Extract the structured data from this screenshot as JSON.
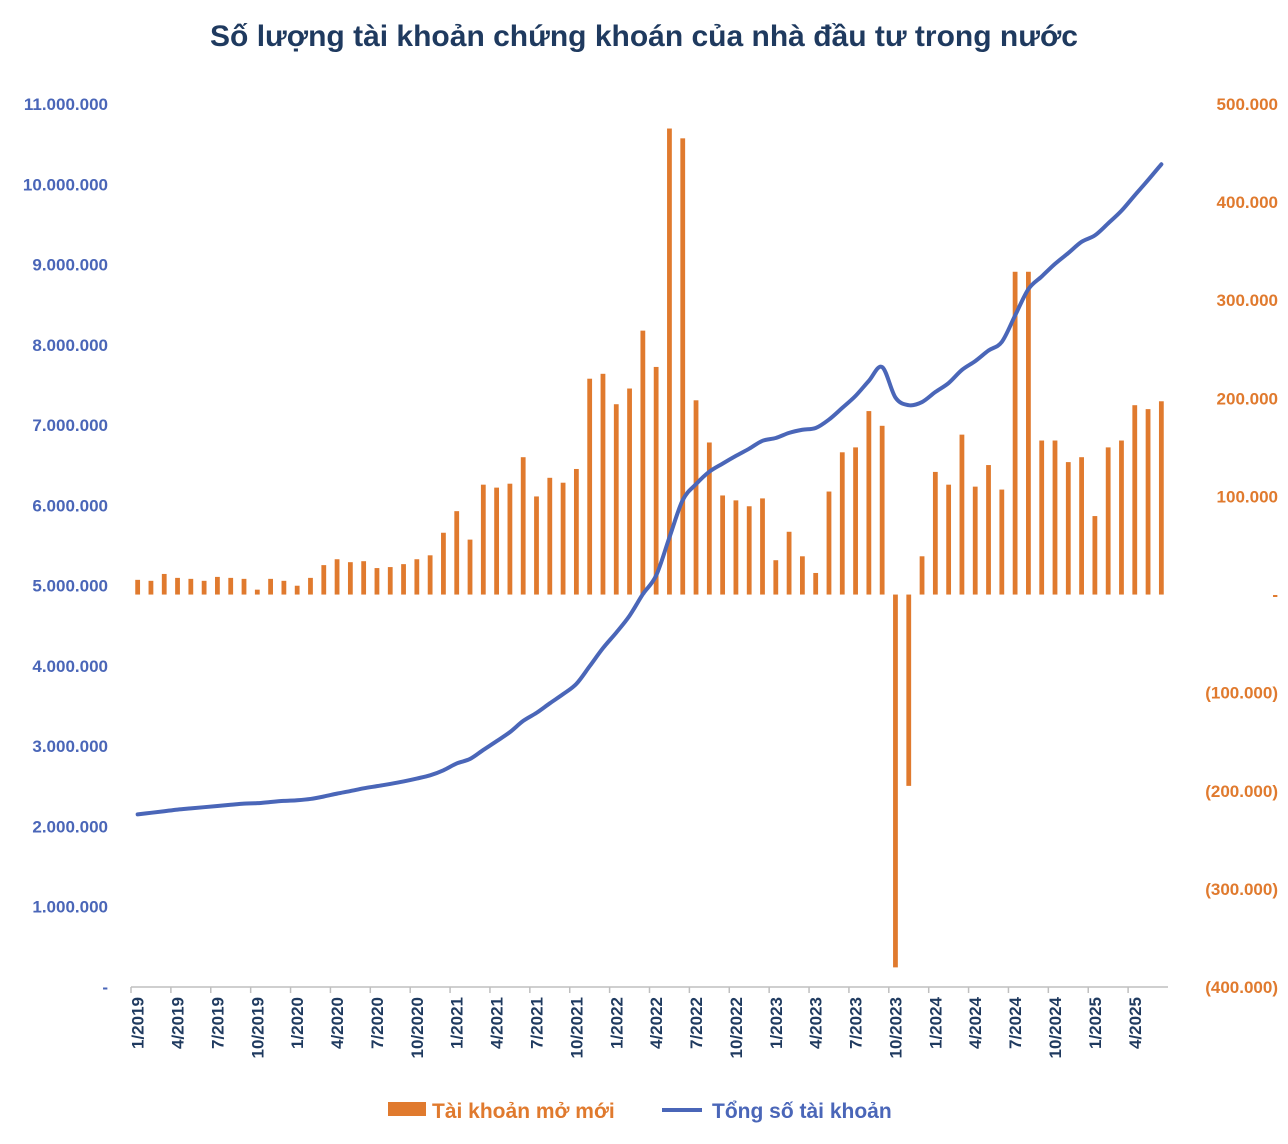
{
  "chart_data": {
    "type": "bar+line",
    "title": "Số lượng tài khoản chứng khoán của nhà đầu tư trong nước",
    "x": [
      "1/2019",
      "2/2019",
      "3/2019",
      "4/2019",
      "5/2019",
      "6/2019",
      "7/2019",
      "8/2019",
      "9/2019",
      "10/2019",
      "11/2019",
      "12/2019",
      "1/2020",
      "2/2020",
      "3/2020",
      "4/2020",
      "5/2020",
      "6/2020",
      "7/2020",
      "8/2020",
      "9/2020",
      "10/2020",
      "11/2020",
      "12/2020",
      "1/2021",
      "2/2021",
      "3/2021",
      "4/2021",
      "5/2021",
      "6/2021",
      "7/2021",
      "8/2021",
      "9/2021",
      "10/2021",
      "11/2021",
      "12/2021",
      "1/2022",
      "2/2022",
      "3/2022",
      "4/2022",
      "5/2022",
      "6/2022",
      "7/2022",
      "8/2022",
      "9/2022",
      "10/2022",
      "11/2022",
      "12/2022",
      "1/2023",
      "2/2023",
      "3/2023",
      "4/2023",
      "5/2023",
      "6/2023",
      "7/2023",
      "8/2023",
      "9/2023",
      "10/2023",
      "11/2023",
      "12/2023",
      "1/2024",
      "2/2024",
      "3/2024",
      "4/2024",
      "5/2024",
      "6/2024",
      "7/2024",
      "8/2024",
      "9/2024",
      "10/2024",
      "11/2024",
      "12/2024",
      "1/2025",
      "2/2025",
      "3/2025",
      "4/2025",
      "5/2025",
      "6/2025"
    ],
    "xtick_labels": [
      "1/2019",
      "4/2019",
      "7/2019",
      "10/2019",
      "1/2020",
      "4/2020",
      "7/2020",
      "10/2020",
      "1/2021",
      "4/2021",
      "7/2021",
      "10/2021",
      "1/2022",
      "4/2022",
      "7/2022",
      "10/2022",
      "1/2023",
      "4/2023",
      "7/2023",
      "10/2023",
      "1/2024",
      "4/2024",
      "7/2024",
      "10/2024",
      "1/2025",
      "4/2025"
    ],
    "series": [
      {
        "name": "Tài khoản mở mới",
        "type": "bar",
        "axis": "right",
        "color": "#e07a2e",
        "values": [
          15000,
          14000,
          21000,
          17000,
          16000,
          14000,
          18000,
          17000,
          16000,
          5000,
          16000,
          14000,
          9000,
          17000,
          30000,
          36000,
          33000,
          34000,
          27000,
          28000,
          31000,
          36000,
          40000,
          63000,
          85000,
          56000,
          112000,
          109000,
          113000,
          140000,
          100000,
          119000,
          114000,
          128000,
          220000,
          225000,
          194000,
          210000,
          269000,
          232000,
          475000,
          465000,
          198000,
          155000,
          101000,
          96000,
          90000,
          98000,
          35000,
          64000,
          39000,
          22000,
          105000,
          145000,
          150000,
          187000,
          172000,
          -380000,
          -195000,
          39000,
          125000,
          112000,
          163000,
          110000,
          132000,
          107000,
          329000,
          329000,
          157000,
          157000,
          135000,
          140000,
          80000,
          150000,
          157000,
          193000,
          189000,
          197000
        ]
      },
      {
        "name": "Tổng số tài khoản",
        "type": "line",
        "axis": "left",
        "color": "#4a66b8",
        "values": [
          2150000,
          2170000,
          2190000,
          2210000,
          2225000,
          2240000,
          2255000,
          2270000,
          2285000,
          2290000,
          2305000,
          2318000,
          2327000,
          2343000,
          2373000,
          2409000,
          2441000,
          2475000,
          2502000,
          2530000,
          2561000,
          2597000,
          2637000,
          2700000,
          2785000,
          2841000,
          2953000,
          3062000,
          3175000,
          3315000,
          3415000,
          3534000,
          3648000,
          3776000,
          3996000,
          4221000,
          4415000,
          4625000,
          4894000,
          5126000,
          5601000,
          6066000,
          6264000,
          6419000,
          6520000,
          6616000,
          6706000,
          6804000,
          6839000,
          6903000,
          6942000,
          6964000,
          7069000,
          7214000,
          7364000,
          7551000,
          7723000,
          7343000,
          7248000,
          7287000,
          7412000,
          7524000,
          7687000,
          7797000,
          7929000,
          8036000,
          8365000,
          8694000,
          8851000,
          9008000,
          9143000,
          9283000,
          9363000,
          9513000,
          9670000,
          9863000,
          10052000,
          10249000
        ]
      }
    ],
    "y_left": {
      "min": 0,
      "max": 11000000,
      "step": 1000000,
      "tick_labels": [
        "-",
        "1.000.000",
        "2.000.000",
        "3.000.000",
        "4.000.000",
        "5.000.000",
        "6.000.000",
        "7.000.000",
        "8.000.000",
        "9.000.000",
        "10.000.000",
        "11.000.000"
      ]
    },
    "y_right": {
      "min": -400000,
      "max": 500000,
      "step": 100000,
      "tick_labels": [
        "(400.000)",
        "(300.000)",
        "(200.000)",
        "(100.000)",
        "-",
        "100.000",
        "200.000",
        "300.000",
        "400.000",
        "500.000"
      ]
    },
    "legend": {
      "position": "bottom",
      "items": [
        "Tài khoản mở mới",
        "Tổng số tài khoản"
      ]
    },
    "grid": false
  }
}
